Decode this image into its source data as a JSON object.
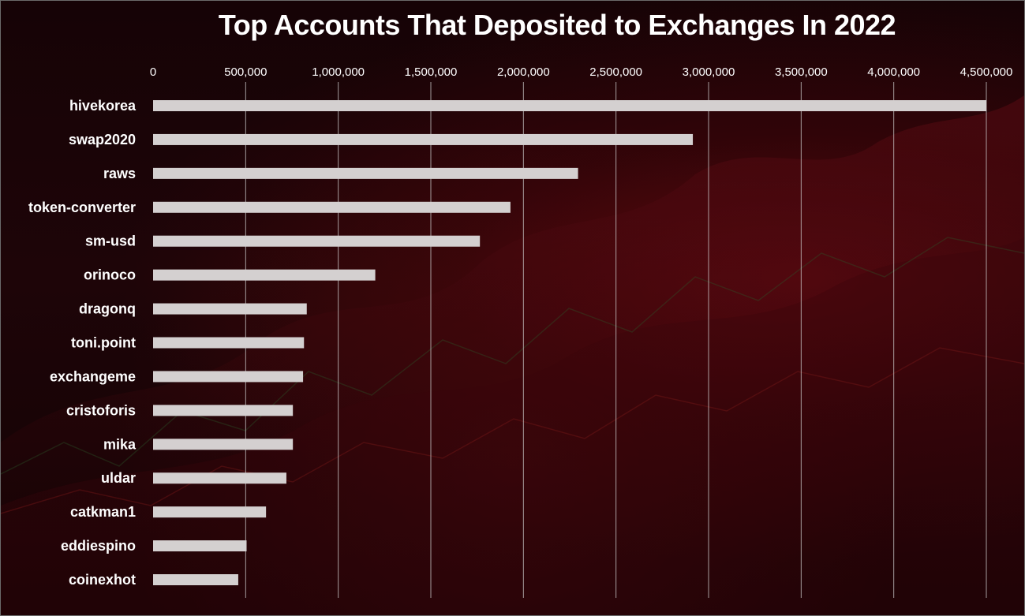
{
  "chart_data": {
    "type": "bar",
    "orientation": "horizontal",
    "title": "Top Accounts That Deposited to Exchanges In 2022",
    "xlabel": "",
    "ylabel": "",
    "xlim": [
      0,
      4500000
    ],
    "ticks": [
      0,
      500000,
      1000000,
      1500000,
      2000000,
      2500000,
      3000000,
      3500000,
      4000000,
      4500000
    ],
    "tick_labels": [
      "0",
      "500,000",
      "1,000,000",
      "1,500,000",
      "2,000,000",
      "2,500,000",
      "3,000,000",
      "3,500,000",
      "4,000,000",
      "4,500,000"
    ],
    "categories": [
      "hivekorea",
      "swap2020",
      "raws",
      "token-converter",
      "sm-usd",
      "orinoco",
      "dragonq",
      "toni.point",
      "exchangeme",
      "cristoforis",
      "mika",
      "uldar",
      "catkman1",
      "eddiespino",
      "coinexhot"
    ],
    "values": [
      4500000,
      2915000,
      2295000,
      1930000,
      1765000,
      1200000,
      830000,
      815000,
      810000,
      755000,
      755000,
      720000,
      610000,
      505000,
      460000
    ],
    "grid": true,
    "axis_position": "top",
    "legend": "none",
    "bar_color": "#d4d0d0",
    "text_color": "#ffffff",
    "background_color": "#1a0407"
  }
}
